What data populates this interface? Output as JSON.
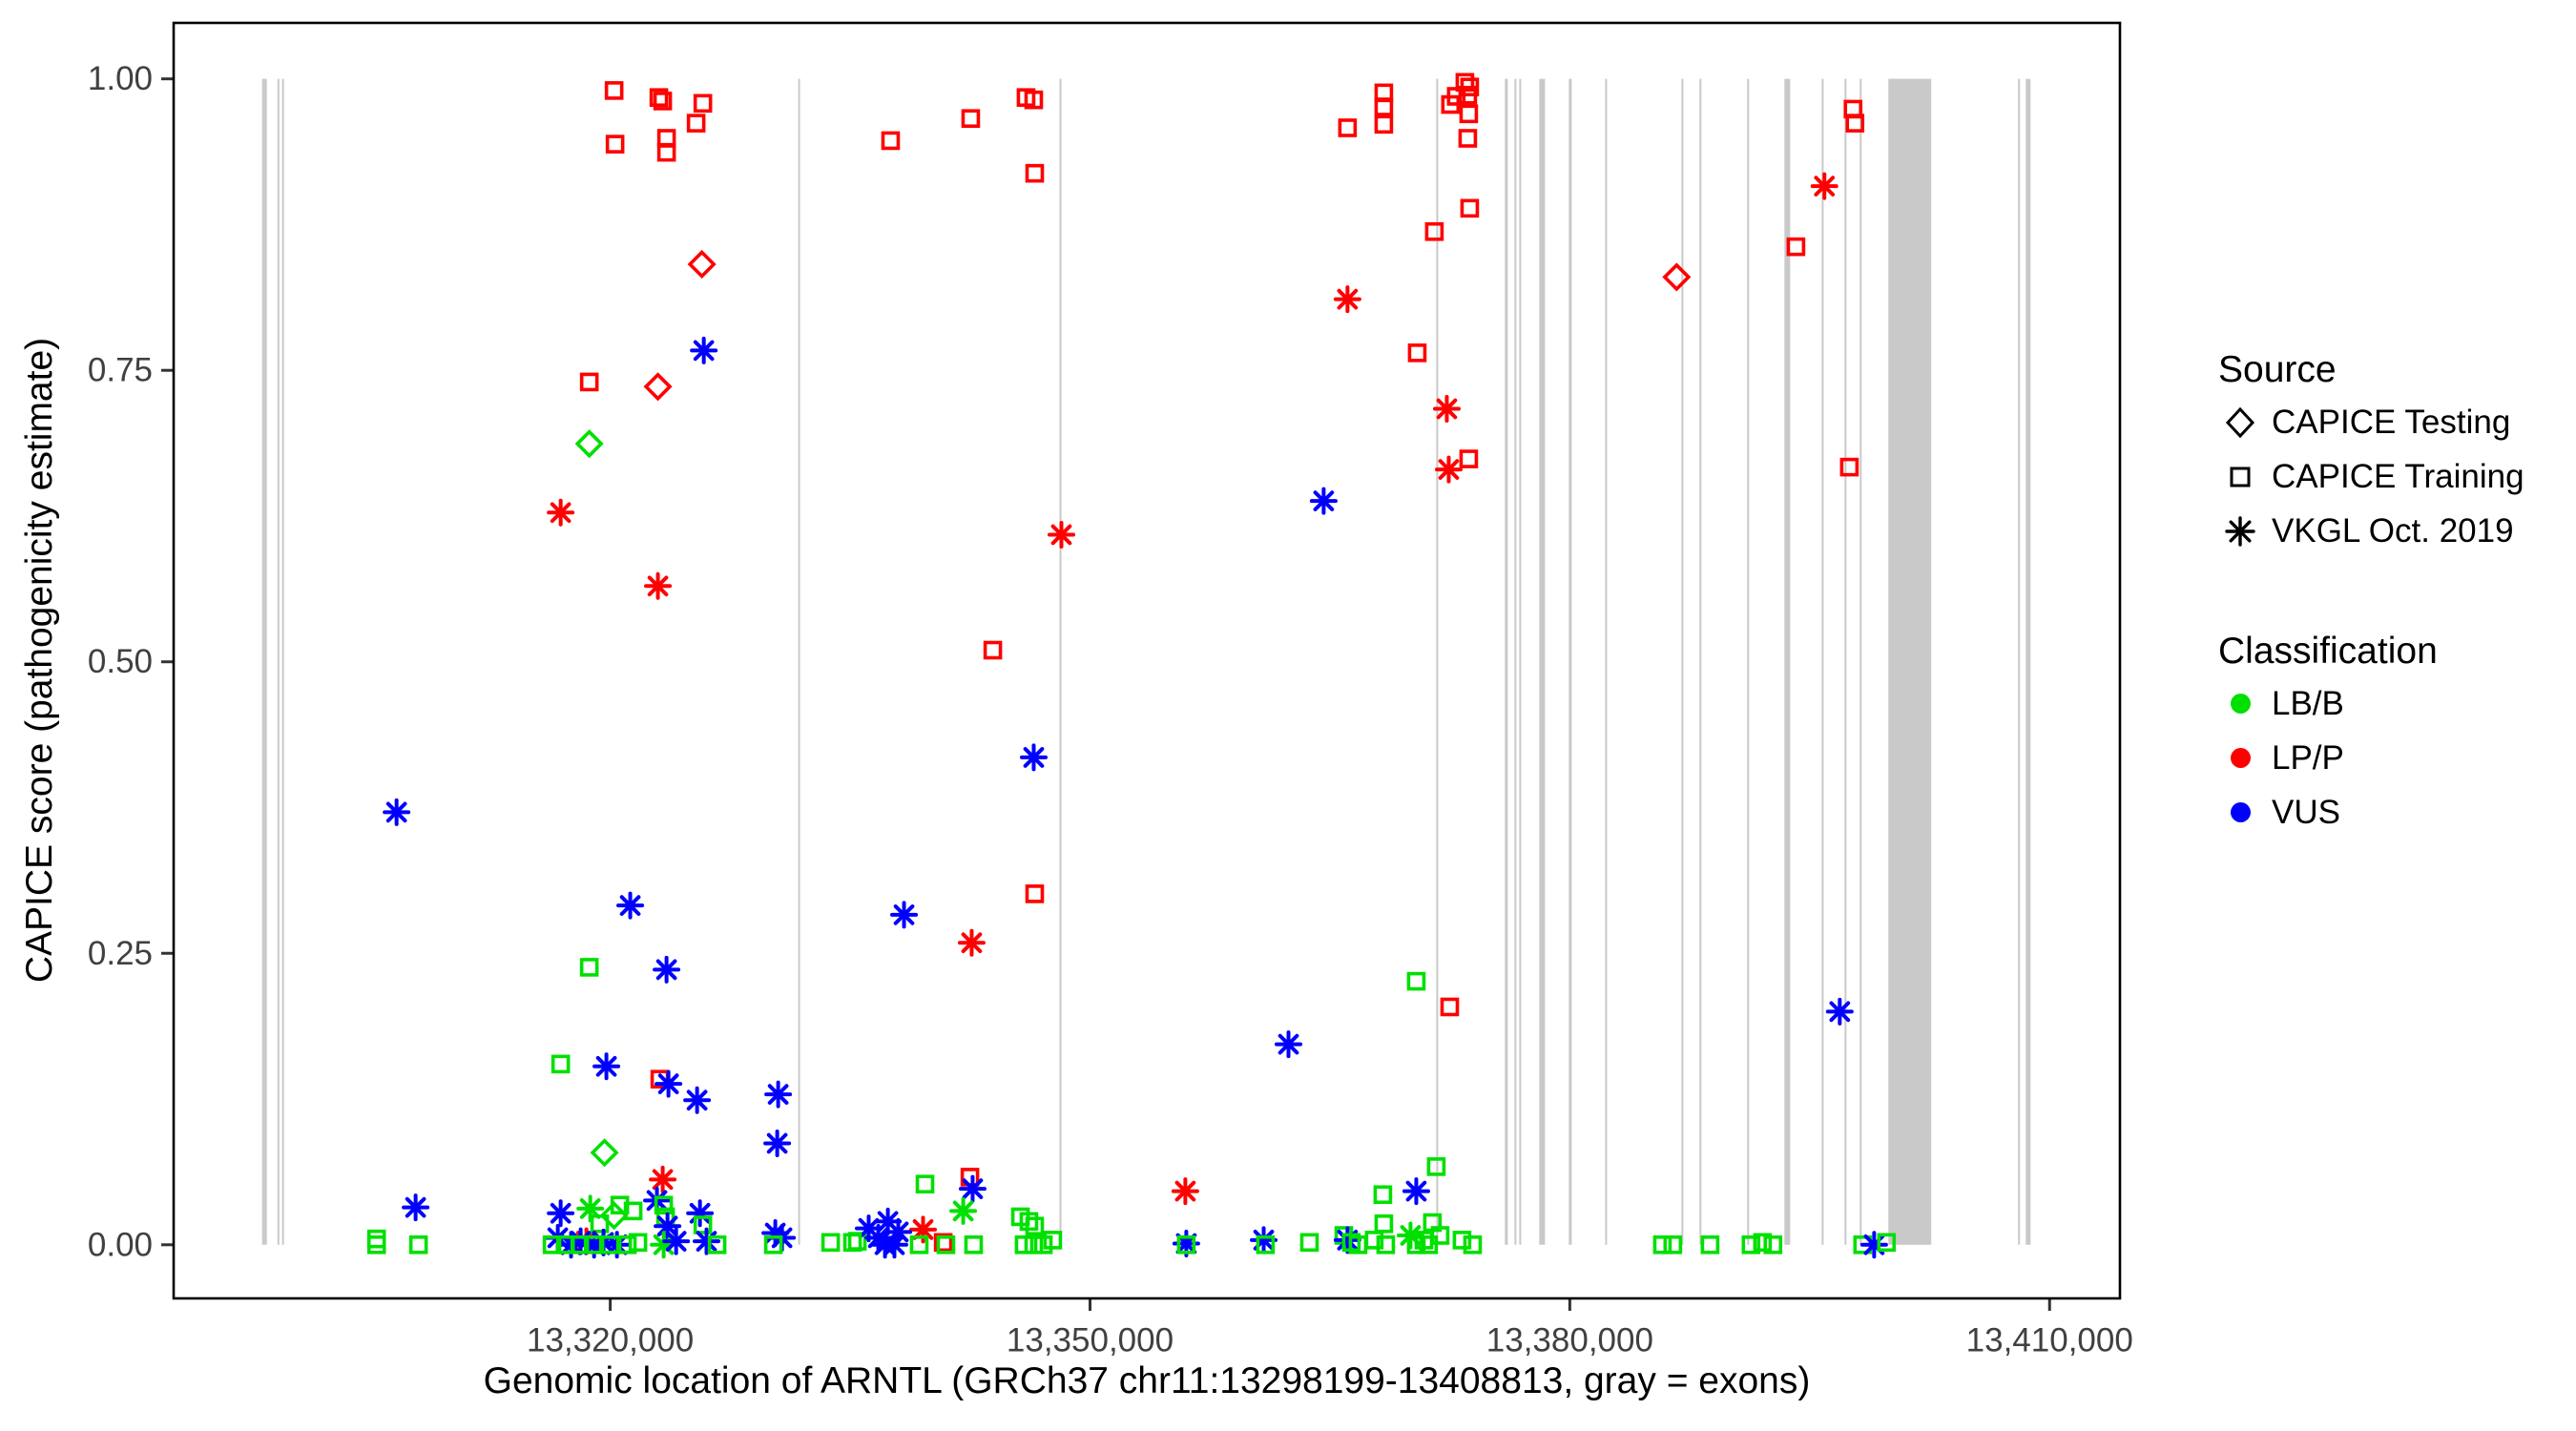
{
  "chart_data": {
    "type": "scatter",
    "title": "",
    "xlabel": "Genomic location of ARNTL (GRCh37 chr11:13298199-13408813, gray = exons)",
    "ylabel": "CAPICE score (pathogenicity estimate)",
    "x_ticks": [
      {
        "label": "13,320,000",
        "value": 13320000
      },
      {
        "label": "13,350,000",
        "value": 13350000
      },
      {
        "label": "13,380,000",
        "value": 13380000
      },
      {
        "label": "13,410,000",
        "value": 13410000
      }
    ],
    "y_ticks": [
      {
        "label": "1.00",
        "value": 1.0
      },
      {
        "label": "0.75",
        "value": 0.75
      },
      {
        "label": "0.50",
        "value": 0.5
      },
      {
        "label": "0.25",
        "value": 0.25
      },
      {
        "label": "0.00",
        "value": 0.0
      }
    ],
    "xlim": [
      13292700,
      13414400
    ],
    "ylim": [
      -0.046,
      1.048
    ],
    "grid": false,
    "exon_note": "gray vertical bars mark exon positions, spanning score 0.00 to 1.00",
    "exon_color": "#C9C9C9",
    "exons_bp": [
      [
        13298230,
        13298530
      ],
      [
        13299190,
        13299300
      ],
      [
        13299480,
        13299600
      ],
      [
        13331750,
        13331870
      ],
      [
        13348090,
        13348210
      ],
      [
        13371650,
        13371770
      ],
      [
        13375940,
        13376120
      ],
      [
        13376540,
        13376660
      ],
      [
        13376840,
        13376960
      ],
      [
        13378090,
        13378450
      ],
      [
        13379940,
        13380120
      ],
      [
        13382210,
        13382330
      ],
      [
        13386980,
        13387100
      ],
      [
        13388110,
        13388230
      ],
      [
        13391090,
        13391210
      ],
      [
        13393420,
        13393780
      ],
      [
        13395750,
        13395870
      ],
      [
        13397180,
        13397300
      ],
      [
        13398130,
        13398250
      ],
      [
        13399920,
        13402600
      ],
      [
        13408030,
        13408150
      ],
      [
        13408510,
        13408810
      ]
    ],
    "legend": {
      "position": "right",
      "source_title": "Source",
      "sources": [
        {
          "key": "testing",
          "label": "CAPICE Testing",
          "shape": "diamond"
        },
        {
          "key": "training",
          "label": "CAPICE Training",
          "shape": "square"
        },
        {
          "key": "vkgl",
          "label": "VKGL Oct. 2019",
          "shape": "asterisk"
        }
      ],
      "classification_title": "Classification",
      "classes": [
        {
          "label": "LB/B",
          "color": "#00E000"
        },
        {
          "label": "LP/P",
          "color": "#FF0000"
        },
        {
          "label": "VUS",
          "color": "#0000FF"
        }
      ]
    },
    "point_format": [
      "genomic_position_bp",
      "capice_score",
      "source_key",
      "classification"
    ],
    "points": [
      [
        13306640,
        0.371,
        "vkgl",
        "VUS"
      ],
      [
        13307830,
        0.032,
        "vkgl",
        "VUS"
      ],
      [
        13305390,
        0.005,
        "training",
        "LB/B"
      ],
      [
        13305390,
        0.0,
        "training",
        "LB/B"
      ],
      [
        13308010,
        0.0,
        "training",
        "LB/B"
      ],
      [
        13320240,
        0.99,
        "training",
        "LP/P"
      ],
      [
        13323040,
        0.984,
        "training",
        "LP/P"
      ],
      [
        13323280,
        0.981,
        "training",
        "LP/P"
      ],
      [
        13325790,
        0.979,
        "training",
        "LP/P"
      ],
      [
        13325370,
        0.962,
        "training",
        "LP/P"
      ],
      [
        13320300,
        0.944,
        "training",
        "LP/P"
      ],
      [
        13323520,
        0.949,
        "training",
        "LP/P"
      ],
      [
        13323520,
        0.937,
        "training",
        "LP/P"
      ],
      [
        13325730,
        0.841,
        "testing",
        "LP/P"
      ],
      [
        13325850,
        0.767,
        "vkgl",
        "VUS"
      ],
      [
        13318690,
        0.74,
        "training",
        "LP/P"
      ],
      [
        13322980,
        0.736,
        "testing",
        "LP/P"
      ],
      [
        13318690,
        0.687,
        "testing",
        "LB/B"
      ],
      [
        13316900,
        0.628,
        "vkgl",
        "LP/P"
      ],
      [
        13322980,
        0.565,
        "vkgl",
        "LP/P"
      ],
      [
        13321250,
        0.291,
        "vkgl",
        "VUS"
      ],
      [
        13318690,
        0.238,
        "training",
        "LB/B"
      ],
      [
        13323520,
        0.236,
        "vkgl",
        "VUS"
      ],
      [
        13316900,
        0.155,
        "training",
        "LB/B"
      ],
      [
        13319760,
        0.153,
        "vkgl",
        "VUS"
      ],
      [
        13323100,
        0.142,
        "training",
        "LP/P"
      ],
      [
        13323640,
        0.138,
        "vkgl",
        "VUS"
      ],
      [
        13325430,
        0.124,
        "vkgl",
        "VUS"
      ],
      [
        13330500,
        0.129,
        "vkgl",
        "VUS"
      ],
      [
        13330440,
        0.087,
        "vkgl",
        "VUS"
      ],
      [
        13319640,
        0.079,
        "testing",
        "LB/B"
      ],
      [
        13323280,
        0.056,
        "vkgl",
        "LP/P"
      ],
      [
        13322920,
        0.038,
        "vkgl",
        "VUS"
      ],
      [
        13316900,
        0.027,
        "vkgl",
        "VUS"
      ],
      [
        13318750,
        0.031,
        "vkgl",
        "LB/B"
      ],
      [
        13320240,
        0.025,
        "testing",
        "LB/B"
      ],
      [
        13320600,
        0.034,
        "training",
        "LB/B"
      ],
      [
        13321430,
        0.029,
        "training",
        "LB/B"
      ],
      [
        13319340,
        0.018,
        "training",
        "LB/B"
      ],
      [
        13318510,
        0.003,
        "vkgl",
        "LP/P"
      ],
      [
        13316720,
        0.006,
        "vkgl",
        "VUS"
      ],
      [
        13317550,
        0.0,
        "vkgl",
        "VUS"
      ],
      [
        13318150,
        0.003,
        "vkgl",
        "VUS"
      ],
      [
        13318990,
        0.0,
        "vkgl",
        "VUS"
      ],
      [
        13319580,
        0.002,
        "vkgl",
        "VUS"
      ],
      [
        13320420,
        0.0,
        "vkgl",
        "VUS"
      ],
      [
        13316360,
        0.0,
        "training",
        "LB/B"
      ],
      [
        13317200,
        0.0,
        "training",
        "LB/B"
      ],
      [
        13318090,
        0.0,
        "training",
        "LB/B"
      ],
      [
        13318930,
        0.0,
        "training",
        "LB/B"
      ],
      [
        13320000,
        0.0,
        "training",
        "LB/B"
      ],
      [
        13321070,
        0.0,
        "training",
        "LB/B"
      ],
      [
        13321730,
        0.002,
        "training",
        "LB/B"
      ],
      [
        13323340,
        0.034,
        "training",
        "LB/B"
      ],
      [
        13323460,
        0.024,
        "training",
        "LB/B"
      ],
      [
        13323580,
        0.016,
        "vkgl",
        "VUS"
      ],
      [
        13323340,
        0.0,
        "vkgl",
        "LB/B"
      ],
      [
        13324120,
        0.003,
        "vkgl",
        "VUS"
      ],
      [
        13325610,
        0.027,
        "vkgl",
        "VUS"
      ],
      [
        13325790,
        0.017,
        "training",
        "LB/B"
      ],
      [
        13326020,
        0.003,
        "vkgl",
        "VUS"
      ],
      [
        13326680,
        0.0,
        "training",
        "LB/B"
      ],
      [
        13330320,
        0.01,
        "vkgl",
        "VUS"
      ],
      [
        13330740,
        0.006,
        "vkgl",
        "VUS"
      ],
      [
        13330200,
        0.0,
        "training",
        "LB/B"
      ],
      [
        13333780,
        0.002,
        "training",
        "LB/B"
      ],
      [
        13335450,
        0.003,
        "training",
        "LB/B"
      ],
      [
        13337530,
        0.947,
        "training",
        "LP/P"
      ],
      [
        13342540,
        0.966,
        "training",
        "LP/P"
      ],
      [
        13346000,
        0.984,
        "training",
        "LP/P"
      ],
      [
        13346480,
        0.982,
        "training",
        "LP/P"
      ],
      [
        13346540,
        0.919,
        "training",
        "LP/P"
      ],
      [
        13343920,
        0.51,
        "training",
        "LP/P"
      ],
      [
        13348210,
        0.609,
        "vkgl",
        "LP/P"
      ],
      [
        13346540,
        0.301,
        "training",
        "LP/P"
      ],
      [
        13338370,
        0.283,
        "vkgl",
        "VUS"
      ],
      [
        13342600,
        0.259,
        "vkgl",
        "LP/P"
      ],
      [
        13346480,
        0.418,
        "vkgl",
        "VUS"
      ],
      [
        13339680,
        0.052,
        "training",
        "LB/B"
      ],
      [
        13342490,
        0.058,
        "training",
        "LP/P"
      ],
      [
        13342660,
        0.048,
        "vkgl",
        "VUS"
      ],
      [
        13342070,
        0.029,
        "vkgl",
        "LB/B"
      ],
      [
        13339560,
        0.013,
        "vkgl",
        "LP/P"
      ],
      [
        13340820,
        0.002,
        "training",
        "LP/P"
      ],
      [
        13336160,
        0.014,
        "vkgl",
        "VUS"
      ],
      [
        13336760,
        0.006,
        "vkgl",
        "VUS"
      ],
      [
        13337360,
        0.02,
        "vkgl",
        "VUS"
      ],
      [
        13337770,
        0.0,
        "vkgl",
        "VUS"
      ],
      [
        13338010,
        0.011,
        "vkgl",
        "VUS"
      ],
      [
        13337180,
        0.0,
        "vkgl",
        "VUS"
      ],
      [
        13335150,
        0.002,
        "training",
        "LB/B"
      ],
      [
        13339320,
        0.0,
        "training",
        "LB/B"
      ],
      [
        13340990,
        0.0,
        "training",
        "LB/B"
      ],
      [
        13342720,
        0.0,
        "training",
        "LB/B"
      ],
      [
        13345650,
        0.024,
        "training",
        "LB/B"
      ],
      [
        13346180,
        0.02,
        "training",
        "LB/B"
      ],
      [
        13346540,
        0.016,
        "training",
        "LB/B"
      ],
      [
        13345880,
        0.0,
        "training",
        "LB/B"
      ],
      [
        13346480,
        0.0,
        "training",
        "LB/B"
      ],
      [
        13347080,
        0.0,
        "training",
        "LB/B"
      ],
      [
        13347670,
        0.004,
        "training",
        "LB/B"
      ],
      [
        13355960,
        0.046,
        "vkgl",
        "LP/P"
      ],
      [
        13356020,
        0.001,
        "vkgl",
        "VUS"
      ],
      [
        13356020,
        0.0,
        "training",
        "LB/B"
      ],
      [
        13360860,
        0.004,
        "vkgl",
        "VUS"
      ],
      [
        13360970,
        0.0,
        "training",
        "LB/B"
      ],
      [
        13363720,
        0.002,
        "training",
        "LB/B"
      ],
      [
        13362410,
        0.172,
        "vkgl",
        "VUS"
      ],
      [
        13366100,
        0.958,
        "training",
        "LP/P"
      ],
      [
        13368370,
        0.988,
        "training",
        "LP/P"
      ],
      [
        13368370,
        0.976,
        "training",
        "LP/P"
      ],
      [
        13368370,
        0.961,
        "training",
        "LP/P"
      ],
      [
        13373440,
        0.997,
        "training",
        "LP/P"
      ],
      [
        13373740,
        0.993,
        "training",
        "LP/P"
      ],
      [
        13373620,
        0.986,
        "training",
        "LP/P"
      ],
      [
        13372540,
        0.978,
        "training",
        "LP/P"
      ],
      [
        13372900,
        0.985,
        "training",
        "LP/P"
      ],
      [
        13373680,
        0.97,
        "training",
        "LP/P"
      ],
      [
        13373620,
        0.949,
        "training",
        "LP/P"
      ],
      [
        13373740,
        0.889,
        "training",
        "LP/P"
      ],
      [
        13371530,
        0.869,
        "training",
        "LP/P"
      ],
      [
        13366100,
        0.811,
        "vkgl",
        "LP/P"
      ],
      [
        13370460,
        0.765,
        "training",
        "LP/P"
      ],
      [
        13372310,
        0.717,
        "vkgl",
        "LP/P"
      ],
      [
        13372430,
        0.665,
        "vkgl",
        "LP/P"
      ],
      [
        13373680,
        0.674,
        "training",
        "LP/P"
      ],
      [
        13364610,
        0.638,
        "vkgl",
        "VUS"
      ],
      [
        13370400,
        0.226,
        "training",
        "LB/B"
      ],
      [
        13372490,
        0.204,
        "training",
        "LP/P"
      ],
      [
        13371650,
        0.067,
        "training",
        "LB/B"
      ],
      [
        13370400,
        0.046,
        "vkgl",
        "VUS"
      ],
      [
        13368310,
        0.043,
        "training",
        "LB/B"
      ],
      [
        13368370,
        0.018,
        "training",
        "LB/B"
      ],
      [
        13365870,
        0.008,
        "training",
        "LB/B"
      ],
      [
        13366100,
        0.004,
        "vkgl",
        "VUS"
      ],
      [
        13366340,
        0.002,
        "training",
        "LB/B"
      ],
      [
        13366760,
        0.0,
        "training",
        "LB/B"
      ],
      [
        13367770,
        0.004,
        "training",
        "LB/B"
      ],
      [
        13368490,
        0.0,
        "training",
        "LB/B"
      ],
      [
        13370040,
        0.008,
        "vkgl",
        "LB/B"
      ],
      [
        13370400,
        0.0,
        "training",
        "LB/B"
      ],
      [
        13370880,
        0.004,
        "training",
        "LB/B"
      ],
      [
        13371170,
        0.0,
        "training",
        "LB/B"
      ],
      [
        13371410,
        0.019,
        "training",
        "LB/B"
      ],
      [
        13371890,
        0.008,
        "training",
        "LB/B"
      ],
      [
        13373260,
        0.004,
        "training",
        "LB/B"
      ],
      [
        13373920,
        0.0,
        "training",
        "LB/B"
      ],
      [
        13386680,
        0.83,
        "testing",
        "LP/P"
      ],
      [
        13394140,
        0.856,
        "training",
        "LP/P"
      ],
      [
        13395920,
        0.908,
        "vkgl",
        "LP/P"
      ],
      [
        13397710,
        0.974,
        "training",
        "LP/P"
      ],
      [
        13397830,
        0.962,
        "training",
        "LP/P"
      ],
      [
        13397480,
        0.667,
        "training",
        "LP/P"
      ],
      [
        13396880,
        0.2,
        "vkgl",
        "VUS"
      ],
      [
        13385790,
        0.0,
        "training",
        "LB/B"
      ],
      [
        13386440,
        0.0,
        "training",
        "LB/B"
      ],
      [
        13388770,
        0.0,
        "training",
        "LB/B"
      ],
      [
        13391330,
        0.0,
        "training",
        "LB/B"
      ],
      [
        13392050,
        0.002,
        "training",
        "LB/B"
      ],
      [
        13392700,
        0.0,
        "training",
        "LB/B"
      ],
      [
        13398310,
        0.0,
        "training",
        "LB/B"
      ],
      [
        13399030,
        0.0,
        "vkgl",
        "VUS"
      ],
      [
        13399800,
        0.002,
        "training",
        "LB/B"
      ]
    ]
  }
}
